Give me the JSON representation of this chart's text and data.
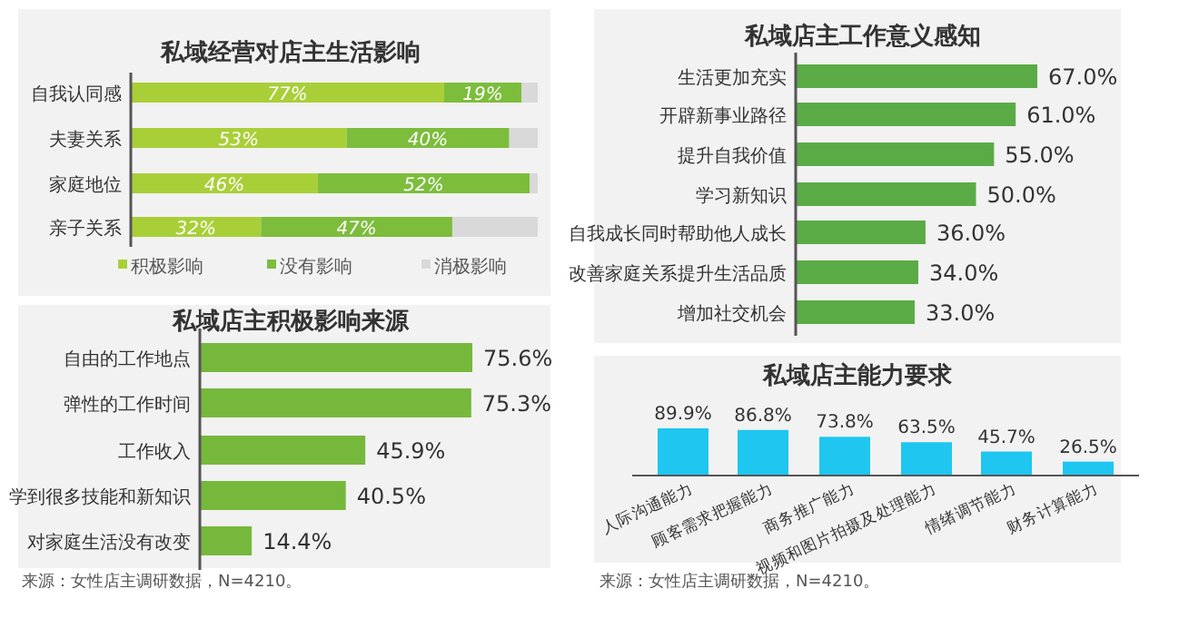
{
  "chart_data": [
    {
      "type": "bar",
      "orientation": "horizontal",
      "stacked": true,
      "title": "私域经营对店主生活影响",
      "categories": [
        "自我认同感",
        "夫妻关系",
        "家庭地位",
        "亲子关系"
      ],
      "legend": "bottom",
      "series": [
        {
          "name": "积极影响",
          "color": "#a9cf38",
          "values": [
            77,
            53,
            46,
            32
          ],
          "value_labels": [
            "77%",
            "53%",
            "46%",
            "32%"
          ]
        },
        {
          "name": "没有影响",
          "color": "#7cbd3c",
          "values": [
            19,
            40,
            52,
            47
          ],
          "value_labels": [
            "19%",
            "40%",
            "52%",
            "47%"
          ]
        },
        {
          "name": "消极影响",
          "color": "#d9d9d9",
          "values": [
            4,
            7,
            2,
            21
          ],
          "value_labels": [
            null,
            null,
            null,
            null
          ]
        }
      ]
    },
    {
      "type": "bar",
      "orientation": "horizontal",
      "title": "私域店主积极影响来源",
      "categories": [
        "自由的工作地点",
        "弹性的工作时间",
        "工作收入",
        "学到很多技能和新知识",
        "对家庭生活没有改变"
      ],
      "color": "#76b83c",
      "values": [
        75.6,
        75.3,
        45.9,
        40.5,
        14.4
      ],
      "value_labels": [
        "75.6%",
        "75.3%",
        "45.9%",
        "40.5%",
        "14.4%"
      ],
      "annotations": [
        "来源：女性店主调研数据，N=4210。"
      ]
    },
    {
      "type": "bar",
      "orientation": "horizontal",
      "title": "私域店主工作意义感知",
      "categories": [
        "生活更加充实",
        "开辟新事业路径",
        "提升自我价值",
        "学习新知识",
        "自我成长同时帮助他人成长",
        "改善家庭关系提升生活品质",
        "增加社交机会"
      ],
      "color": "#5aab46",
      "values": [
        67.0,
        61.0,
        55.0,
        50.0,
        36.0,
        34.0,
        33.0
      ],
      "value_labels": [
        "67.0%",
        "61.0%",
        "55.0%",
        "50.0%",
        "36.0%",
        "34.0%",
        "33.0%"
      ]
    },
    {
      "type": "bar",
      "title": "私域店主能力要求",
      "categories": [
        "人际沟通能力",
        "顾客需求把握能力",
        "商务推广能力",
        "视频和图片拍摄及处理能力",
        "情绪调节能力",
        "财务计算能力"
      ],
      "color": "#1fc6f0",
      "values": [
        89.9,
        86.8,
        73.8,
        63.5,
        45.7,
        26.5
      ],
      "value_labels": [
        "89.9%",
        "86.8%",
        "73.8%",
        "63.5%",
        "45.7%",
        "26.5%"
      ],
      "annotations": [
        "来源：女性店主调研数据，N=4210。"
      ]
    }
  ]
}
